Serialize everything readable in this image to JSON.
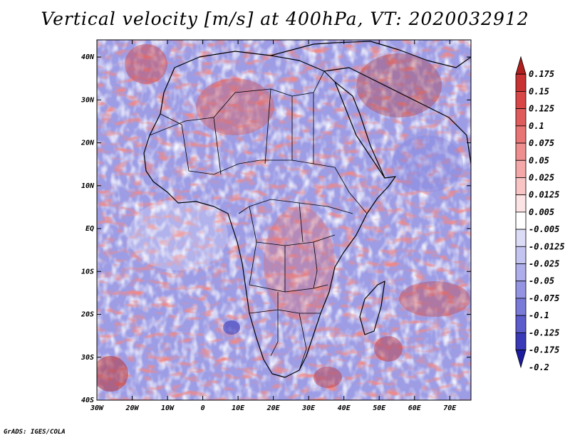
{
  "title": "Vertical velocity [m/s] at 400hPa, VT: 2020032912",
  "credit": "GrADS: IGES/COLA",
  "map": {
    "lat_labels": [
      "40N",
      "30N",
      "20N",
      "10N",
      "EQ",
      "10S",
      "20S",
      "30S",
      "40S"
    ],
    "lon_labels": [
      "30W",
      "20W",
      "10W",
      "0",
      "10E",
      "20E",
      "30E",
      "40E",
      "50E",
      "60E",
      "70E"
    ],
    "lon_range": [
      -30,
      76
    ],
    "lat_range": [
      -40,
      44
    ]
  },
  "colorbar": {
    "levels": [
      "0.175",
      "0.15",
      "0.125",
      "0.1",
      "0.075",
      "0.05",
      "0.025",
      "0.0125",
      "0.005",
      "-0.005",
      "-0.0125",
      "-0.025",
      "-0.05",
      "-0.075",
      "-0.1",
      "-0.125",
      "-0.175",
      "-0.2"
    ],
    "colors": [
      "#b21e1e",
      "#c83232",
      "#d84646",
      "#e05c5c",
      "#e87474",
      "#ee8e8e",
      "#f4a8a8",
      "#f8c4c4",
      "#fde4e4",
      "#ffffff",
      "#dcdcf6",
      "#c4c4f0",
      "#aeaeea",
      "#9494e2",
      "#7a7ad8",
      "#5c5ccc",
      "#3a3ab8",
      "#1c1ca0"
    ]
  }
}
